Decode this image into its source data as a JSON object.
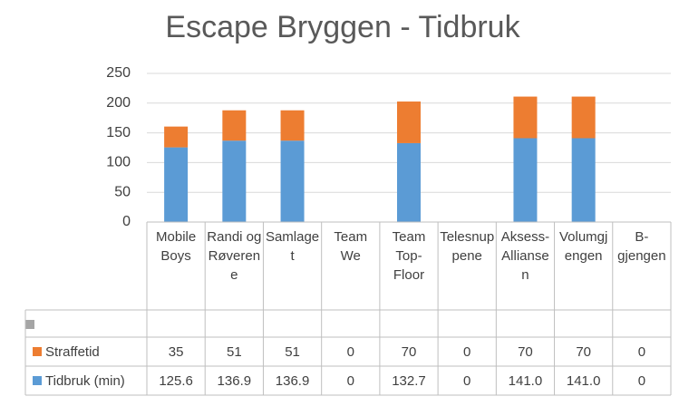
{
  "chart_data": {
    "type": "stacked_bar",
    "title": "Escape Bryggen - Tidbruk",
    "categories": [
      "Mobile Boys",
      "Randi og Røverene",
      "Samlaget",
      "Team We",
      "Team Top-Floor",
      "Telesnuppene",
      "Aksess-Allianse n",
      "Volumgjengen",
      "B-gjengen"
    ],
    "series": [
      {
        "name": "Tidbruk (min)",
        "color": "#5b9bd5",
        "values": [
          125.6,
          136.9,
          136.9,
          0,
          132.7,
          0,
          141.0,
          141.0,
          0
        ],
        "value_labels": [
          "125.6",
          "136.9",
          "136.9",
          "0",
          "132.7",
          "0",
          "141.0",
          "141.0",
          "0"
        ]
      },
      {
        "name": "Straffetid",
        "color": "#ed7d31",
        "values": [
          35,
          51,
          51,
          0,
          70,
          0,
          70,
          70,
          0
        ]
      }
    ],
    "ylim": [
      0,
      250
    ],
    "yticks": [
      0,
      50,
      100,
      150,
      200,
      250
    ],
    "grid": true
  }
}
